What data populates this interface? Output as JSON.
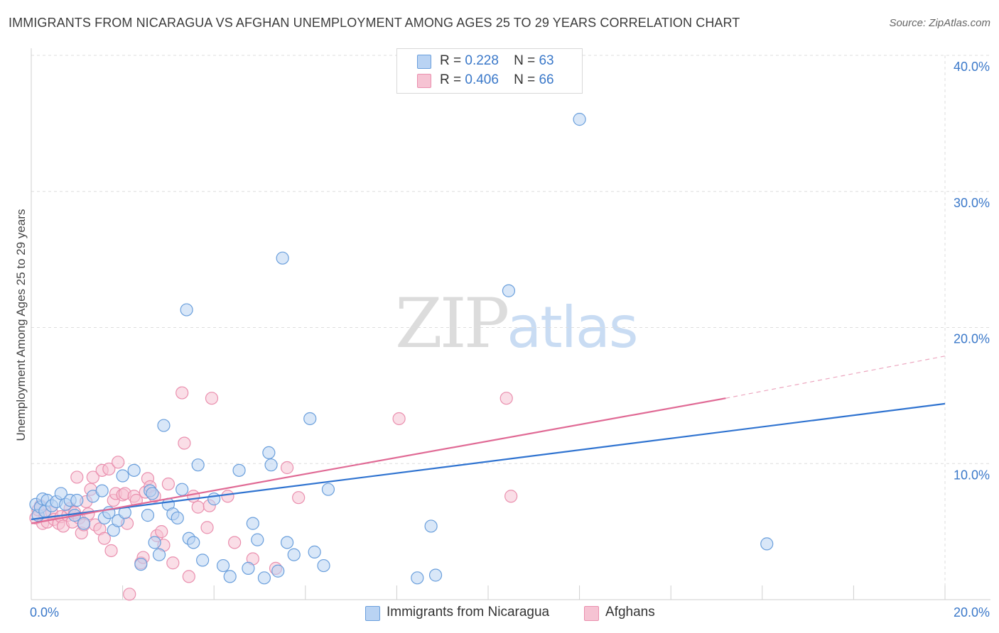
{
  "header": {
    "title": "IMMIGRANTS FROM NICARAGUA VS AFGHAN UNEMPLOYMENT AMONG AGES 25 TO 29 YEARS CORRELATION CHART",
    "source": "Source: ZipAtlas.com"
  },
  "watermark": {
    "part1": "ZIP",
    "part2": "atlas"
  },
  "legend": {
    "series1": {
      "r_label": "R =",
      "r_value": "0.228",
      "n_label": "N =",
      "n_value": "63"
    },
    "series2": {
      "r_label": "R =",
      "r_value": "0.406",
      "n_label": "N =",
      "n_value": "66"
    }
  },
  "bottom_legend": {
    "series1": "Immigrants from Nicaragua",
    "series2": "Afghans"
  },
  "colors": {
    "blue_fill": "#b9d3f3",
    "blue_stroke": "#6a9fdc",
    "blue_line": "#2f73d0",
    "pink_fill": "#f6c3d3",
    "pink_stroke": "#ea8fae",
    "pink_line": "#e06a95",
    "grid": "#dddddd",
    "tick_text": "#3a78c9"
  },
  "chart_data": {
    "type": "scatter",
    "title": "IMMIGRANTS FROM NICARAGUA VS AFGHAN UNEMPLOYMENT AMONG AGES 25 TO 29 YEARS CORRELATION CHART",
    "xlabel": "",
    "ylabel": "Unemployment Among Ages 25 to 29 years",
    "xlim": [
      0,
      20
    ],
    "ylim": [
      0,
      40
    ],
    "x_tick_labels": [
      "0.0%",
      "20.0%"
    ],
    "y_ticks": [
      10,
      20,
      30,
      40
    ],
    "y_tick_labels": [
      "10.0%",
      "20.0%",
      "30.0%",
      "40.0%"
    ],
    "grid": true,
    "legend_position": "top-center",
    "series": [
      {
        "name": "Immigrants from Nicaragua",
        "R": 0.228,
        "N": 63,
        "trend": {
          "x": [
            0,
            20
          ],
          "y": [
            5.9,
            14.4
          ]
        },
        "points": [
          [
            0.1,
            7.0
          ],
          [
            0.15,
            6.2
          ],
          [
            0.2,
            6.8
          ],
          [
            0.25,
            7.4
          ],
          [
            0.3,
            6.5
          ],
          [
            0.35,
            7.3
          ],
          [
            0.45,
            6.9
          ],
          [
            0.55,
            7.2
          ],
          [
            0.65,
            7.8
          ],
          [
            0.75,
            7.0
          ],
          [
            0.85,
            7.3
          ],
          [
            0.95,
            6.2
          ],
          [
            1.0,
            7.3
          ],
          [
            1.15,
            5.6
          ],
          [
            1.35,
            7.6
          ],
          [
            1.55,
            8.0
          ],
          [
            1.6,
            6.0
          ],
          [
            1.7,
            6.4
          ],
          [
            1.8,
            5.1
          ],
          [
            1.9,
            5.8
          ],
          [
            2.0,
            9.1
          ],
          [
            2.05,
            6.4
          ],
          [
            2.25,
            9.5
          ],
          [
            2.4,
            2.6
          ],
          [
            2.55,
            6.2
          ],
          [
            2.6,
            8.0
          ],
          [
            2.65,
            7.8
          ],
          [
            2.7,
            4.2
          ],
          [
            2.8,
            3.3
          ],
          [
            2.9,
            12.8
          ],
          [
            3.0,
            7.0
          ],
          [
            3.1,
            6.3
          ],
          [
            3.2,
            6.0
          ],
          [
            3.3,
            8.1
          ],
          [
            3.4,
            21.3
          ],
          [
            3.45,
            4.5
          ],
          [
            3.55,
            4.2
          ],
          [
            3.65,
            9.9
          ],
          [
            3.75,
            2.9
          ],
          [
            4.0,
            7.4
          ],
          [
            4.2,
            2.5
          ],
          [
            4.35,
            1.7
          ],
          [
            4.55,
            9.5
          ],
          [
            4.75,
            2.3
          ],
          [
            4.85,
            5.6
          ],
          [
            4.95,
            4.4
          ],
          [
            5.1,
            1.6
          ],
          [
            5.2,
            10.8
          ],
          [
            5.25,
            9.9
          ],
          [
            5.4,
            2.1
          ],
          [
            5.5,
            25.1
          ],
          [
            5.6,
            4.2
          ],
          [
            5.75,
            3.3
          ],
          [
            6.1,
            13.3
          ],
          [
            6.2,
            3.5
          ],
          [
            6.4,
            2.5
          ],
          [
            6.5,
            8.1
          ],
          [
            8.45,
            1.6
          ],
          [
            8.75,
            5.4
          ],
          [
            8.85,
            1.8
          ],
          [
            10.45,
            22.7
          ],
          [
            12.0,
            35.3
          ],
          [
            16.1,
            4.1
          ]
        ]
      },
      {
        "name": "Afghans",
        "R": 0.406,
        "N": 66,
        "trend": {
          "x": [
            0,
            15.2
          ],
          "y": [
            5.6,
            14.8
          ]
        },
        "trend_dashed": {
          "x": [
            15.2,
            20
          ],
          "y": [
            14.8,
            17.9
          ]
        },
        "points": [
          [
            0.1,
            6.0
          ],
          [
            0.15,
            6.6
          ],
          [
            0.2,
            6.9
          ],
          [
            0.25,
            5.6
          ],
          [
            0.3,
            6.2
          ],
          [
            0.35,
            5.7
          ],
          [
            0.45,
            6.4
          ],
          [
            0.5,
            5.9
          ],
          [
            0.6,
            5.6
          ],
          [
            0.65,
            6.1
          ],
          [
            0.7,
            5.4
          ],
          [
            0.8,
            6.2
          ],
          [
            0.85,
            6.7
          ],
          [
            0.9,
            5.7
          ],
          [
            0.95,
            6.4
          ],
          [
            1.0,
            9.0
          ],
          [
            1.05,
            6.0
          ],
          [
            1.1,
            4.9
          ],
          [
            1.15,
            5.5
          ],
          [
            1.2,
            7.2
          ],
          [
            1.25,
            6.3
          ],
          [
            1.3,
            8.1
          ],
          [
            1.35,
            9.0
          ],
          [
            1.4,
            5.5
          ],
          [
            1.5,
            5.2
          ],
          [
            1.55,
            9.5
          ],
          [
            1.6,
            4.5
          ],
          [
            1.7,
            9.6
          ],
          [
            1.75,
            3.6
          ],
          [
            1.8,
            7.3
          ],
          [
            1.85,
            7.8
          ],
          [
            1.9,
            10.1
          ],
          [
            2.0,
            7.7
          ],
          [
            2.05,
            7.8
          ],
          [
            2.1,
            5.6
          ],
          [
            2.15,
            0.4
          ],
          [
            2.25,
            7.6
          ],
          [
            2.3,
            7.3
          ],
          [
            2.4,
            2.7
          ],
          [
            2.45,
            3.1
          ],
          [
            2.5,
            7.9
          ],
          [
            2.55,
            8.9
          ],
          [
            2.6,
            8.3
          ],
          [
            2.7,
            7.6
          ],
          [
            2.75,
            4.7
          ],
          [
            2.85,
            5.0
          ],
          [
            2.9,
            4.0
          ],
          [
            3.0,
            8.5
          ],
          [
            3.1,
            2.7
          ],
          [
            3.3,
            15.2
          ],
          [
            3.35,
            11.5
          ],
          [
            3.45,
            1.7
          ],
          [
            3.55,
            7.6
          ],
          [
            3.65,
            6.8
          ],
          [
            3.85,
            5.3
          ],
          [
            3.9,
            6.9
          ],
          [
            3.95,
            14.8
          ],
          [
            4.3,
            7.6
          ],
          [
            4.45,
            4.2
          ],
          [
            4.85,
            3.0
          ],
          [
            5.35,
            2.3
          ],
          [
            5.6,
            9.7
          ],
          [
            5.85,
            7.5
          ],
          [
            8.05,
            13.3
          ],
          [
            10.4,
            14.8
          ],
          [
            10.5,
            7.6
          ]
        ]
      }
    ]
  }
}
